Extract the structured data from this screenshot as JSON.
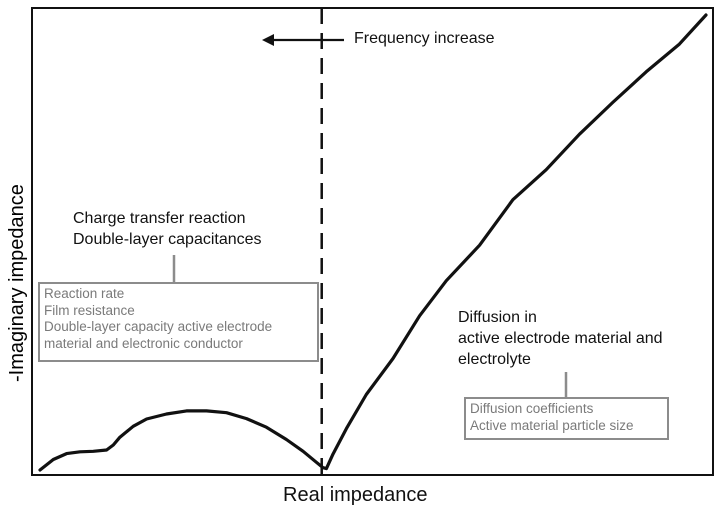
{
  "chart_data": {
    "type": "line",
    "title": "",
    "xlabel": "Real impedance",
    "ylabel": "-Imaginary impedance",
    "xlim": [
      0,
      100
    ],
    "ylim": [
      0,
      100
    ],
    "grid": false,
    "axis_ticks": false,
    "series": [
      {
        "x": [
          0,
          2,
          4,
          6,
          8,
          10,
          11,
          12,
          14,
          16,
          19,
          22,
          25,
          28,
          31,
          34,
          37,
          39.5,
          41.5,
          42.5,
          43,
          44,
          46,
          49,
          53,
          57,
          61,
          66,
          71,
          76,
          81,
          86,
          91,
          96,
          100
        ],
        "y": [
          0,
          2.3,
          3.6,
          4.0,
          4.1,
          4.4,
          5.5,
          7.2,
          9.6,
          11.2,
          12.3,
          13.0,
          13.0,
          12.6,
          11.3,
          9.4,
          6.7,
          4.1,
          1.7,
          0.5,
          0.3,
          3.5,
          9.1,
          16.6,
          24.5,
          33.9,
          41.6,
          49.4,
          59.4,
          66.0,
          73.8,
          80.8,
          87.5,
          93.6,
          100
        ]
      }
    ],
    "divider": {
      "x": 42.3,
      "style": "dashed"
    },
    "annotations": {
      "frequency": "Frequency increase",
      "left_heading": [
        "Charge transfer reaction",
        "Double-layer capacitances"
      ],
      "left_box": [
        "Reaction rate",
        "Film resistance",
        "Double-layer capacity active electrode",
        "material and electronic conductor"
      ],
      "right_heading": [
        "Diffusion in",
        "active electrode material and",
        "electrolyte"
      ],
      "right_box": [
        "Diffusion coefficients",
        "Active material particle size"
      ]
    }
  },
  "colors": {
    "line": "#111111",
    "axes": "#111111",
    "box_border": "#8c8c8c",
    "box_text": "#7a7a7a"
  }
}
